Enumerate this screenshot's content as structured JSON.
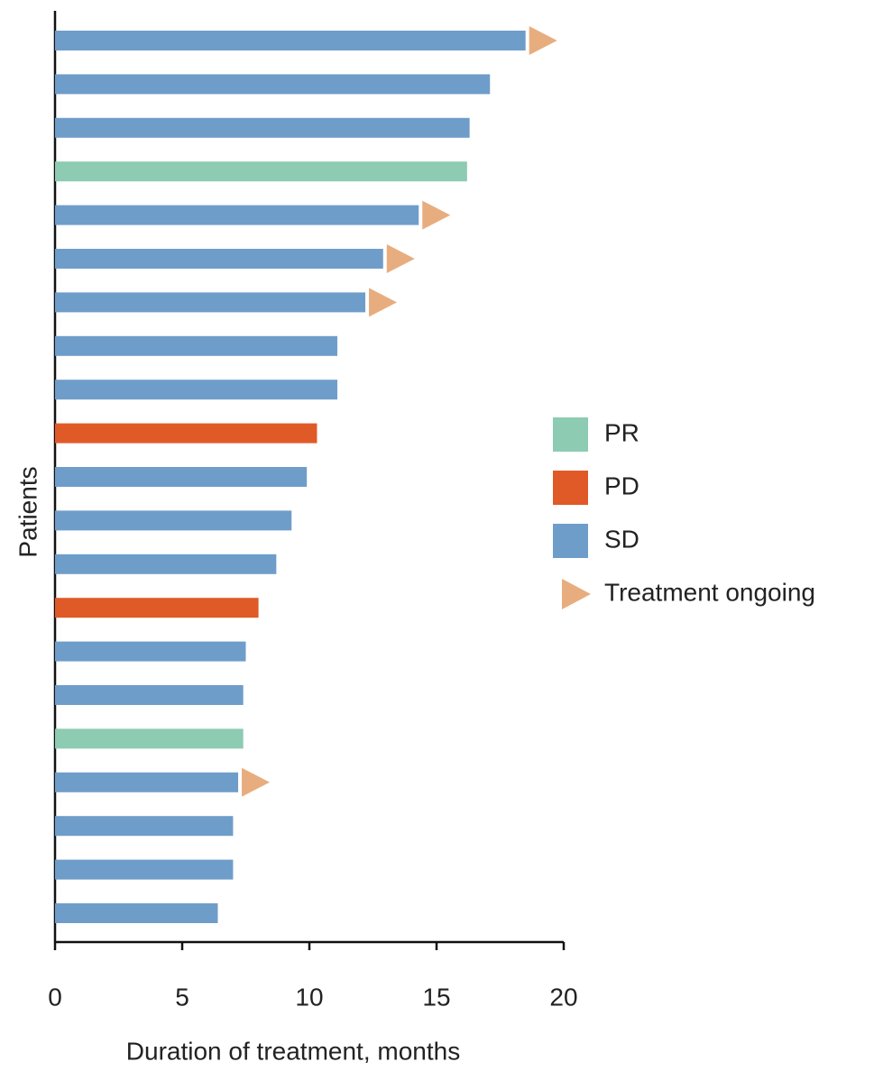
{
  "chart_data": {
    "type": "swimmer",
    "xlabel": "Duration of treatment, months",
    "ylabel": "Patients",
    "xlim": [
      0,
      20
    ],
    "xticks": [
      0,
      5,
      10,
      15,
      20
    ],
    "values": [
      18.5,
      17.1,
      16.3,
      16.2,
      14.3,
      12.9,
      12.2,
      11.1,
      11.1,
      10.3,
      9.9,
      9.3,
      8.7,
      8.0,
      7.5,
      7.4,
      7.4,
      7.2,
      7.0,
      7.0,
      6.4
    ],
    "status": [
      "SD",
      "SD",
      "SD",
      "PR",
      "SD",
      "SD",
      "SD",
      "SD",
      "SD",
      "PD",
      "SD",
      "SD",
      "SD",
      "PD",
      "SD",
      "SD",
      "PR",
      "SD",
      "SD",
      "SD",
      "SD"
    ],
    "ongoing": [
      true,
      false,
      false,
      false,
      true,
      true,
      true,
      false,
      false,
      false,
      false,
      false,
      false,
      false,
      false,
      false,
      false,
      true,
      false,
      false,
      false
    ],
    "legend": [
      {
        "name": "PR",
        "color": "#8dcbb2"
      },
      {
        "name": "PD",
        "color": "#e05a28"
      },
      {
        "name": "SD",
        "color": "#6f9dca"
      }
    ],
    "ongoing_marker": {
      "name": "Treatment ongoing",
      "color": "#e8ad7e"
    }
  }
}
